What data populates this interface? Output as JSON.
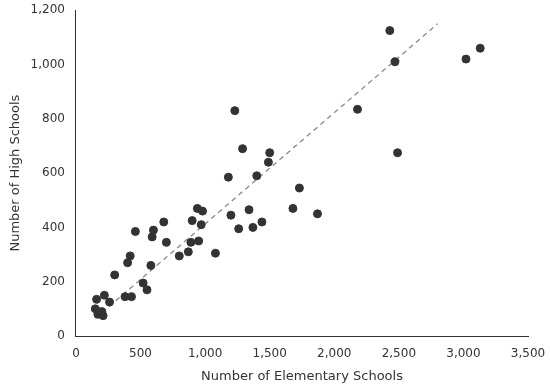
{
  "chart_data": {
    "type": "scatter",
    "x_label": "Number of Elementary Schools",
    "y_label": "Number of High Schools",
    "x": [
      150,
      160,
      170,
      200,
      210,
      220,
      260,
      300,
      380,
      400,
      420,
      430,
      460,
      520,
      550,
      580,
      590,
      600,
      680,
      700,
      800,
      870,
      890,
      900,
      940,
      950,
      970,
      980,
      1080,
      1180,
      1200,
      1230,
      1260,
      1290,
      1340,
      1370,
      1400,
      1440,
      1490,
      1500,
      1680,
      1730,
      1870,
      2180,
      2430,
      2470,
      2490,
      3020,
      3130
    ],
    "values": [
      100,
      135,
      80,
      90,
      75,
      150,
      125,
      225,
      145,
      270,
      295,
      145,
      385,
      195,
      170,
      260,
      365,
      390,
      420,
      345,
      295,
      310,
      345,
      425,
      470,
      350,
      410,
      460,
      305,
      585,
      445,
      830,
      395,
      690,
      465,
      400,
      590,
      420,
      640,
      675,
      470,
      545,
      450,
      835,
      1125,
      1010,
      675,
      1020,
      1060
    ],
    "color": "#333333",
    "marker": "circle",
    "trend": {
      "x": [
        150,
        2800
      ],
      "values": [
        65,
        1150
      ],
      "color": "#888888",
      "line_style": "dashed"
    },
    "xlim": [
      0,
      3500
    ],
    "xticks": [
      0,
      500,
      {
        "value": 1000,
        "label": "1,000"
      },
      {
        "value": 1500,
        "label": "1,500"
      },
      {
        "value": 2000,
        "label": "2,000"
      },
      {
        "value": 2500,
        "label": "2,500"
      },
      {
        "value": 3000,
        "label": "3,000"
      },
      {
        "value": 3500,
        "label": "3,500"
      }
    ],
    "ylim": [
      0,
      1200
    ],
    "yticks": [
      0,
      200,
      400,
      600,
      800,
      {
        "value": 1000,
        "label": "1,000"
      },
      {
        "value": 1200,
        "label": "1,200"
      }
    ],
    "grid": false
  }
}
